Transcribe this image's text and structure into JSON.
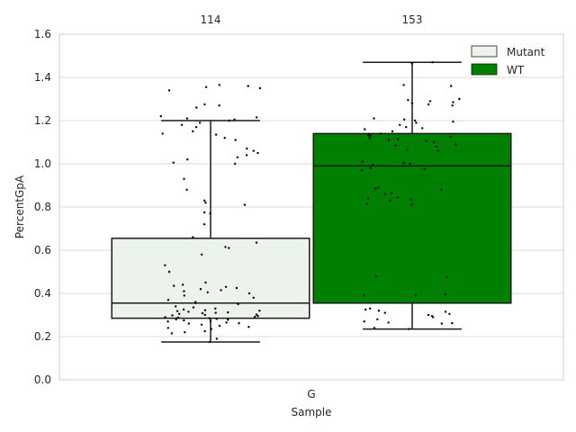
{
  "chart_data": {
    "type": "box",
    "xlabel": "Sample",
    "ylabel": "PercentGpA",
    "categories": [
      "G"
    ],
    "ylim": [
      0.0,
      1.6
    ],
    "yticks": [
      "0.0",
      "0.2",
      "0.4",
      "0.6",
      "0.8",
      "1.0",
      "1.2",
      "1.4",
      "1.6"
    ],
    "grid": true,
    "legend_position": "top-right",
    "series": [
      {
        "name": "Mutant",
        "color": "#ebf3eb",
        "count_label": "114",
        "box": {
          "whisker_low": 0.175,
          "q1": 0.285,
          "median": 0.355,
          "q3": 0.655,
          "whisker_high": 1.2
        },
        "points": [
          0.175,
          0.19,
          0.215,
          0.22,
          0.225,
          0.235,
          0.24,
          0.245,
          0.25,
          0.255,
          0.26,
          0.262,
          0.265,
          0.27,
          0.272,
          0.275,
          0.278,
          0.28,
          0.282,
          0.285,
          0.288,
          0.29,
          0.292,
          0.295,
          0.298,
          0.3,
          0.302,
          0.305,
          0.308,
          0.31,
          0.312,
          0.315,
          0.318,
          0.32,
          0.322,
          0.325,
          0.33,
          0.335,
          0.34,
          0.35,
          0.355,
          0.36,
          0.37,
          0.38,
          0.39,
          0.4,
          0.405,
          0.41,
          0.415,
          0.42,
          0.425,
          0.43,
          0.435,
          0.44,
          0.45,
          0.5,
          0.53,
          0.58,
          0.61,
          0.615,
          0.635,
          0.66,
          0.72,
          0.77,
          0.775,
          0.81,
          0.82,
          0.83,
          0.88,
          0.93,
          1.0,
          1.005,
          1.02,
          1.03,
          1.04,
          1.05,
          1.06,
          1.07,
          1.11,
          1.12,
          1.135,
          1.14,
          1.15,
          1.17,
          1.18,
          1.19,
          1.2,
          1.205,
          1.21,
          1.215,
          1.22,
          1.26,
          1.27,
          1.275,
          1.34,
          1.35,
          1.355,
          1.36,
          1.365
        ]
      },
      {
        "name": "WT",
        "color": "#008000",
        "count_label": "153",
        "box": {
          "whisker_low": 0.235,
          "q1": 0.355,
          "median": 0.99,
          "q3": 1.14,
          "whisker_high": 1.47
        },
        "points": [
          0.235,
          0.24,
          0.26,
          0.262,
          0.265,
          0.27,
          0.28,
          0.29,
          0.295,
          0.3,
          0.305,
          0.31,
          0.315,
          0.32,
          0.325,
          0.33,
          0.39,
          0.392,
          0.395,
          0.475,
          0.478,
          0.81,
          0.815,
          0.83,
          0.835,
          0.84,
          0.845,
          0.86,
          0.865,
          0.88,
          0.885,
          0.89,
          0.97,
          0.975,
          0.98,
          0.99,
          0.995,
          1.0,
          1.005,
          1.01,
          1.06,
          1.065,
          1.08,
          1.085,
          1.09,
          1.1,
          1.105,
          1.11,
          1.115,
          1.12,
          1.125,
          1.13,
          1.135,
          1.14,
          1.15,
          1.16,
          1.165,
          1.17,
          1.18,
          1.19,
          1.195,
          1.2,
          1.205,
          1.21,
          1.27,
          1.275,
          1.28,
          1.285,
          1.29,
          1.295,
          1.3,
          1.36,
          1.365,
          1.465,
          1.47
        ]
      }
    ]
  }
}
